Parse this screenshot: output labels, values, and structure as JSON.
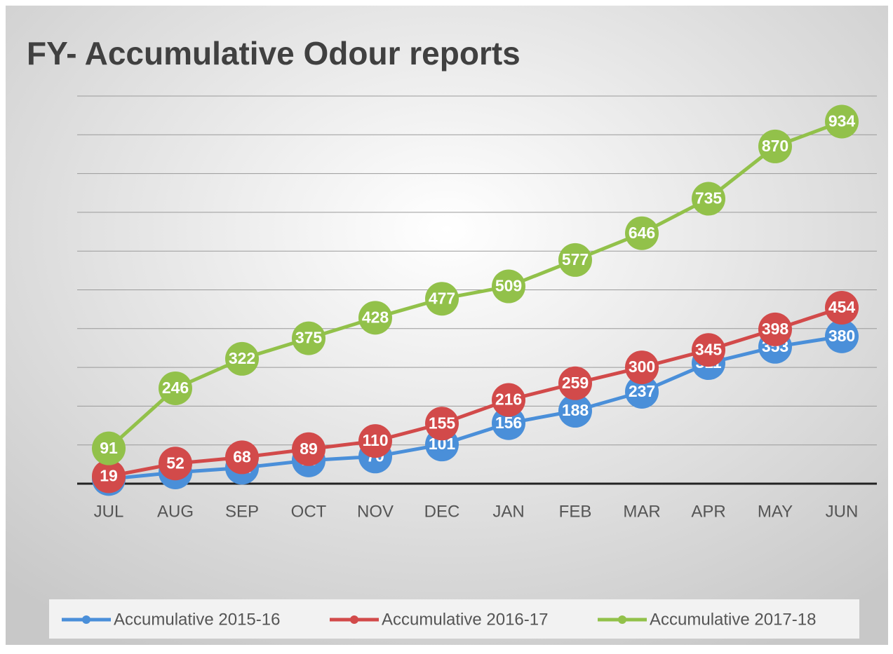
{
  "chart_data": {
    "type": "line",
    "title": "FY- Accumulative Odour reports",
    "categories": [
      "JUL",
      "AUG",
      "SEP",
      "OCT",
      "NOV",
      "DEC",
      "JAN",
      "FEB",
      "MAR",
      "APR",
      "MAY",
      "JUN"
    ],
    "series": [
      {
        "name": "Accumulative 2015-16",
        "color": "#4a8fd9",
        "values": [
          12,
          29,
          41,
          60,
          70,
          101,
          156,
          188,
          237,
          311,
          353,
          380
        ]
      },
      {
        "name": "Accumulative 2016-17",
        "color": "#d24a4a",
        "values": [
          19,
          52,
          68,
          89,
          110,
          155,
          216,
          259,
          300,
          345,
          398,
          454
        ]
      },
      {
        "name": "Accumulative 2017-18",
        "color": "#92c14a",
        "values": [
          91,
          246,
          322,
          375,
          428,
          477,
          509,
          577,
          646,
          735,
          870,
          934
        ]
      }
    ],
    "ylim": [
      0,
      1000
    ],
    "yticks": [
      0,
      100,
      200,
      300,
      400,
      500,
      600,
      700,
      800,
      900,
      1000
    ],
    "grid": true,
    "legend": "bottom"
  }
}
